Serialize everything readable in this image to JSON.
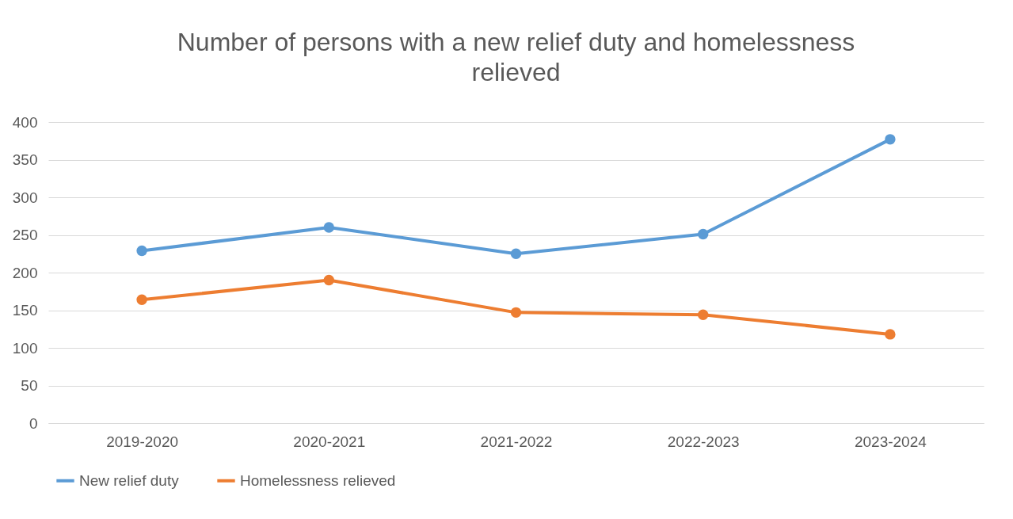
{
  "chart_data": {
    "type": "line",
    "title": "Number of persons with a new relief duty and homelessness relieved",
    "categories": [
      "2019-2020",
      "2020-2021",
      "2021-2022",
      "2022-2023",
      "2023-2024"
    ],
    "series": [
      {
        "name": "New relief duty",
        "color": "#5b9bd5",
        "values": [
          229,
          260,
          225,
          251,
          377
        ]
      },
      {
        "name": "Homelessness relieved",
        "color": "#ed7d31",
        "values": [
          164,
          190,
          147,
          144,
          118
        ]
      }
    ],
    "ylim": [
      0,
      400
    ],
    "yticks": [
      0,
      50,
      100,
      150,
      200,
      250,
      300,
      350,
      400
    ],
    "grid": "y",
    "legend": "bottom",
    "marker": "circle",
    "line_style": "solid"
  }
}
